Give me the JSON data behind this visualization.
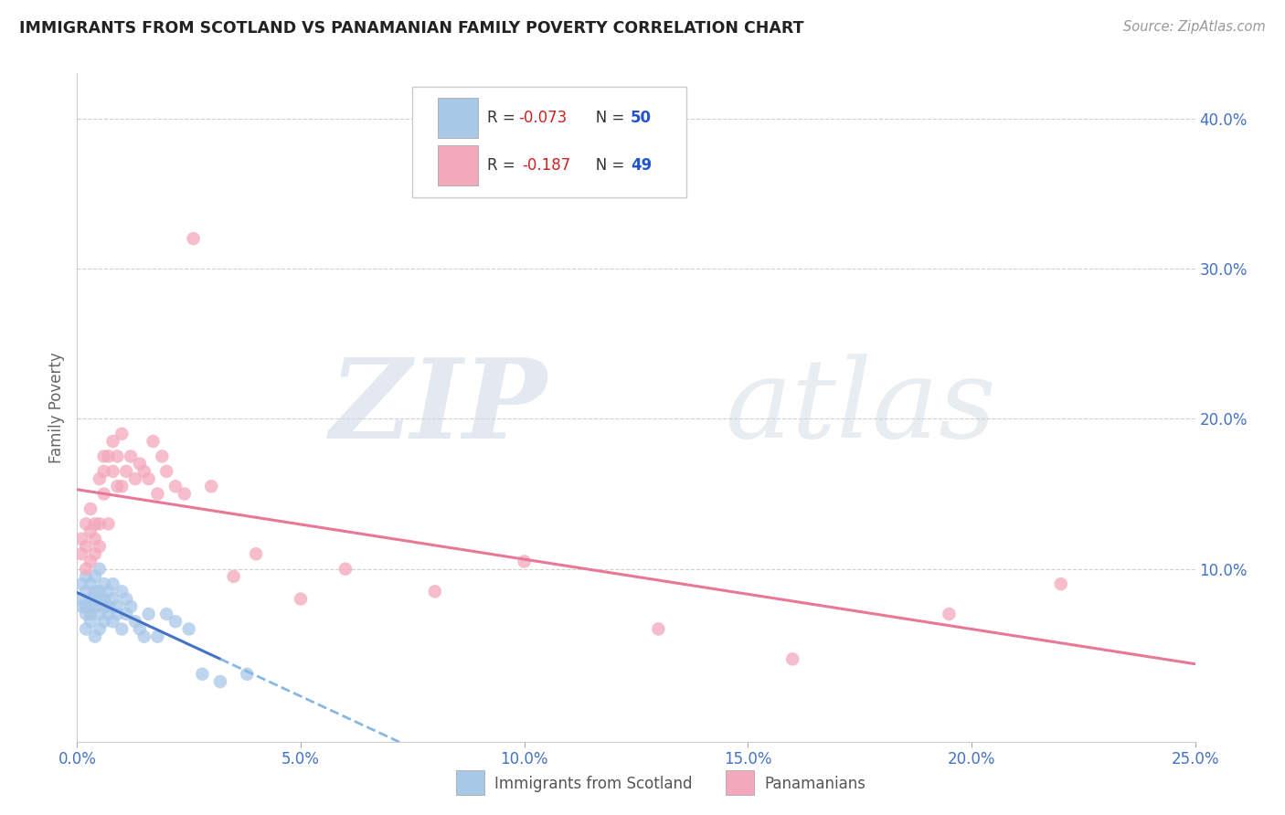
{
  "title": "IMMIGRANTS FROM SCOTLAND VS PANAMANIAN FAMILY POVERTY CORRELATION CHART",
  "source": "Source: ZipAtlas.com",
  "ylabel": "Family Poverty",
  "x_range": [
    0.0,
    0.25
  ],
  "y_range": [
    -0.015,
    0.43
  ],
  "y_ticks": [
    0.0,
    0.1,
    0.2,
    0.3,
    0.4
  ],
  "x_ticks": [
    0.0,
    0.05,
    0.1,
    0.15,
    0.2,
    0.25
  ],
  "legend_label1": "Immigrants from Scotland",
  "legend_label2": "Panamanians",
  "scotland_color": "#a8c8e8",
  "panama_color": "#f4a8bc",
  "scotland_line_color": "#4472c4",
  "panama_line_color": "#e87898",
  "blue_dashed_color": "#88b8e0",
  "scotland_R": -0.073,
  "scotland_N": 50,
  "panama_R": -0.187,
  "panama_N": 49,
  "scotland_x": [
    0.001,
    0.001,
    0.001,
    0.002,
    0.002,
    0.002,
    0.002,
    0.002,
    0.003,
    0.003,
    0.003,
    0.003,
    0.003,
    0.004,
    0.004,
    0.004,
    0.004,
    0.005,
    0.005,
    0.005,
    0.005,
    0.005,
    0.006,
    0.006,
    0.006,
    0.006,
    0.007,
    0.007,
    0.007,
    0.008,
    0.008,
    0.008,
    0.009,
    0.009,
    0.01,
    0.01,
    0.011,
    0.011,
    0.012,
    0.013,
    0.014,
    0.015,
    0.016,
    0.018,
    0.02,
    0.022,
    0.025,
    0.028,
    0.032,
    0.038
  ],
  "scotland_y": [
    0.075,
    0.08,
    0.09,
    0.06,
    0.07,
    0.085,
    0.095,
    0.075,
    0.065,
    0.08,
    0.09,
    0.07,
    0.075,
    0.055,
    0.085,
    0.075,
    0.095,
    0.06,
    0.08,
    0.07,
    0.085,
    0.1,
    0.065,
    0.075,
    0.08,
    0.09,
    0.07,
    0.085,
    0.075,
    0.065,
    0.08,
    0.09,
    0.07,
    0.075,
    0.06,
    0.085,
    0.07,
    0.08,
    0.075,
    0.065,
    0.06,
    0.055,
    0.07,
    0.055,
    0.07,
    0.065,
    0.06,
    0.03,
    0.025,
    0.03
  ],
  "panama_x": [
    0.001,
    0.001,
    0.002,
    0.002,
    0.002,
    0.003,
    0.003,
    0.003,
    0.004,
    0.004,
    0.004,
    0.005,
    0.005,
    0.005,
    0.006,
    0.006,
    0.006,
    0.007,
    0.007,
    0.008,
    0.008,
    0.009,
    0.009,
    0.01,
    0.01,
    0.011,
    0.012,
    0.013,
    0.014,
    0.015,
    0.016,
    0.017,
    0.018,
    0.019,
    0.02,
    0.022,
    0.024,
    0.026,
    0.03,
    0.035,
    0.04,
    0.05,
    0.06,
    0.08,
    0.1,
    0.13,
    0.16,
    0.195,
    0.22
  ],
  "panama_y": [
    0.12,
    0.11,
    0.13,
    0.1,
    0.115,
    0.125,
    0.105,
    0.14,
    0.11,
    0.13,
    0.12,
    0.16,
    0.13,
    0.115,
    0.15,
    0.175,
    0.165,
    0.175,
    0.13,
    0.165,
    0.185,
    0.155,
    0.175,
    0.19,
    0.155,
    0.165,
    0.175,
    0.16,
    0.17,
    0.165,
    0.16,
    0.185,
    0.15,
    0.175,
    0.165,
    0.155,
    0.15,
    0.32,
    0.155,
    0.095,
    0.11,
    0.08,
    0.1,
    0.085,
    0.105,
    0.06,
    0.04,
    0.07,
    0.09
  ],
  "watermark_zip": "ZIP",
  "watermark_atlas": "atlas",
  "background_color": "#ffffff",
  "grid_color": "#d0d0d0"
}
